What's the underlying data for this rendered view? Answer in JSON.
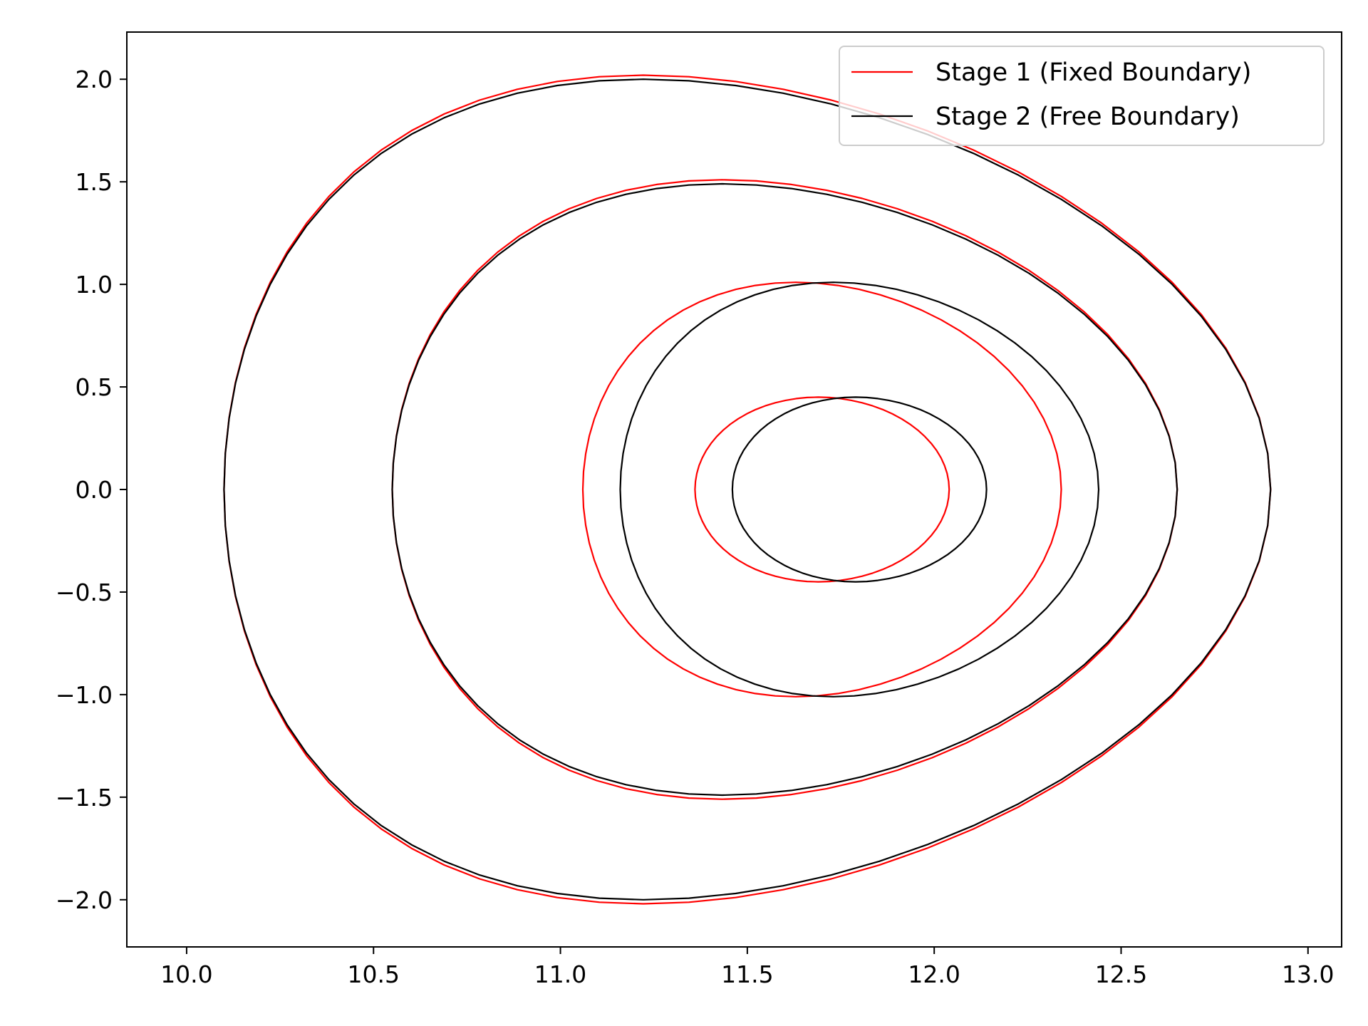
{
  "chart_data": {
    "type": "line",
    "title": "",
    "xlabel": "",
    "ylabel": "",
    "xlim": [
      9.84,
      13.09
    ],
    "ylim": [
      -2.23,
      2.23
    ],
    "xticks": [
      10.0,
      10.5,
      11.0,
      11.5,
      12.0,
      12.5,
      13.0
    ],
    "xtick_labels": [
      "10.0",
      "10.5",
      "11.0",
      "11.5",
      "12.0",
      "12.5",
      "13.0"
    ],
    "yticks": [
      2.0,
      1.5,
      1.0,
      0.5,
      0.0,
      -0.5,
      -1.0,
      -1.5,
      -2.0
    ],
    "ytick_labels": [
      "2.0",
      "1.5",
      "1.0",
      "0.5",
      "0.0",
      "−0.5",
      "−1.0",
      "−1.5",
      "−2.0"
    ],
    "grid": false,
    "legend_position": "top-right",
    "series": [
      {
        "name": "Stage 1 (Fixed Boundary)",
        "color": "#ff0000",
        "surfaces": [
          {
            "r0": 11.7,
            "a": 0.34,
            "tri": 0.03,
            "kappa": 0.45,
            "phase": -0.1
          },
          {
            "r0": 11.7,
            "a": 0.64,
            "tri": 0.11,
            "kappa": 1.01,
            "phase": -0.1
          },
          {
            "r0": 11.6,
            "a": 1.05,
            "tri": 0.16,
            "kappa": 1.51,
            "phase": -0.16
          },
          {
            "r0": 11.5,
            "a": 1.4,
            "tri": 0.2,
            "kappa": 2.02,
            "phase": -0.24
          }
        ]
      },
      {
        "name": "Stage 2 (Free Boundary)",
        "color": "#000000",
        "surfaces": [
          {
            "r0": 11.8,
            "a": 0.34,
            "tri": 0.03,
            "kappa": 0.45,
            "phase": 0.08
          },
          {
            "r0": 11.8,
            "a": 0.64,
            "tri": 0.11,
            "kappa": 1.01,
            "phase": 0.06
          },
          {
            "r0": 11.6,
            "a": 1.05,
            "tri": 0.16,
            "kappa": 1.49,
            "phase": 0.1
          },
          {
            "r0": 11.5,
            "a": 1.4,
            "tri": 0.2,
            "kappa": 2.0,
            "phase": 0.14
          }
        ]
      }
    ]
  }
}
